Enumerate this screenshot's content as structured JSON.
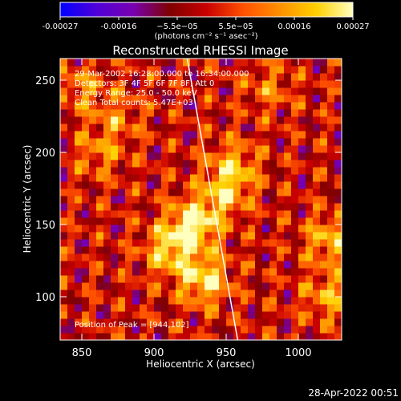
{
  "chart_data": {
    "type": "heatmap",
    "title": "Reconstructed RHESSI Image",
    "xlabel": "Heliocentric X (arcsec)",
    "ylabel": "Heliocentric Y (arcsec)",
    "xlim": [
      835,
      1030
    ],
    "ylim": [
      70,
      265
    ],
    "x_ticks": [
      850,
      900,
      950,
      1000
    ],
    "y_ticks": [
      100,
      150,
      200,
      250
    ],
    "colorbar": {
      "range": [
        -0.00027,
        0.00027
      ],
      "tick_labels": [
        "-0.00027",
        "-0.00016",
        "−5.5e−05",
        "5.5e−05",
        "0.00016",
        "0.00027"
      ],
      "unit_label": "(photons cm⁻² s⁻¹ asec⁻²)",
      "colors": [
        "#0000ff",
        "#5000d8",
        "#7800b0",
        "#800000",
        "#c80000",
        "#ff5000",
        "#ff9000",
        "#ffd000",
        "#ffffc0"
      ]
    },
    "annotations": [
      "29-Mar-2002 16:28:00.000 to 16:34:00.000",
      "Detectors: 3F 4F 5F 6F 7F 8F, Att 0",
      "Energy Range: 25.0 - 50.0 keV",
      "Clean     Total counts: 5.47E+03"
    ],
    "peak_label": "Position of Peak = [944,102]",
    "peak": [
      944,
      102
    ],
    "limb_x_at_ylim": [
      923,
      958
    ],
    "sources": [
      {
        "x": 927,
        "y": 150,
        "value": 0.00027
      },
      {
        "x": 935,
        "y": 112,
        "value": 0.00024
      },
      {
        "x": 910,
        "y": 132,
        "value": 0.0002
      },
      {
        "x": 955,
        "y": 190,
        "value": 0.00018
      },
      {
        "x": 948,
        "y": 170,
        "value": 0.00016
      },
      {
        "x": 862,
        "y": 200,
        "value": 0.00012
      },
      {
        "x": 1022,
        "y": 140,
        "value": 0.00018
      },
      {
        "x": 1020,
        "y": 100,
        "value": 0.00015
      },
      {
        "x": 875,
        "y": 225,
        "value": 0.0001
      },
      {
        "x": 980,
        "y": 245,
        "value": 0.0001
      },
      {
        "x": 850,
        "y": 245,
        "value": 0.00012
      }
    ]
  },
  "timestamp": "28-Apr-2022 00:51"
}
